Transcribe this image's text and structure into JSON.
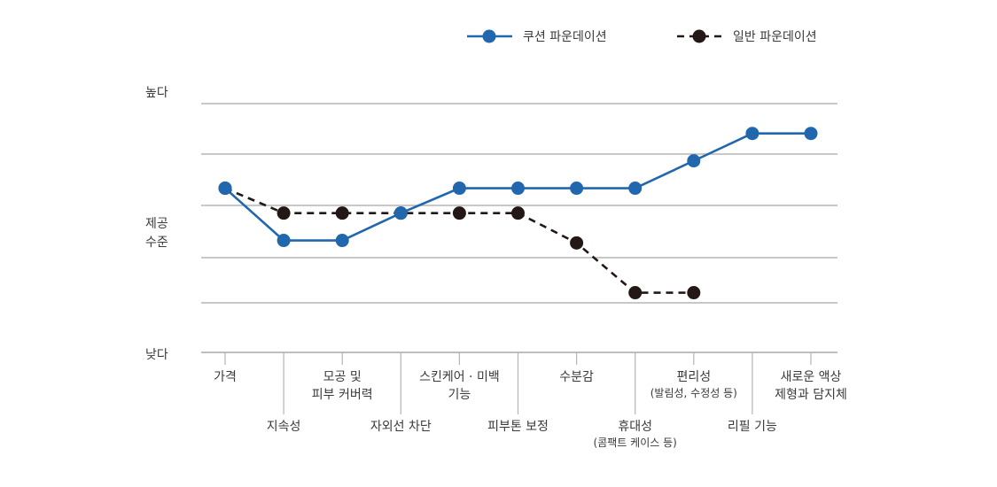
{
  "chart_data": {
    "type": "line",
    "title": "",
    "xlabel": "",
    "ylabel": "제공 수준",
    "y_axis_labels": {
      "top": "높다",
      "middle_line1": "제공",
      "middle_line2": "수준",
      "bottom": "낮다"
    },
    "ylim": [
      0,
      5
    ],
    "grid": true,
    "legend_position": "top-right",
    "categories": [
      {
        "label": [
          "가격"
        ],
        "sub": "",
        "row": "upper"
      },
      {
        "label": [
          "지속성"
        ],
        "sub": "",
        "row": "lower"
      },
      {
        "label": [
          "모공 및",
          "피부 커버력"
        ],
        "sub": "",
        "row": "upper"
      },
      {
        "label": [
          "자외선 차단"
        ],
        "sub": "",
        "row": "lower"
      },
      {
        "label": [
          "스킨케어 · 미백",
          "기능"
        ],
        "sub": "",
        "row": "upper"
      },
      {
        "label": [
          "피부톤 보정"
        ],
        "sub": "",
        "row": "lower"
      },
      {
        "label": [
          "수분감"
        ],
        "sub": "",
        "row": "upper"
      },
      {
        "label": [
          "휴대성"
        ],
        "sub": "(콤팩트 케이스 등)",
        "row": "lower"
      },
      {
        "label": [
          "편리성"
        ],
        "sub": "(발림성, 수정성 등)",
        "row": "upper"
      },
      {
        "label": [
          "리필 기능"
        ],
        "sub": "",
        "row": "lower"
      },
      {
        "label": [
          "새로운 액상",
          "제형과 담지체"
        ],
        "sub": "",
        "row": "upper"
      }
    ],
    "series": [
      {
        "name": "쿠션 파운데이션",
        "color": "#2167ad",
        "style": "solid",
        "values": [
          3.3,
          2.25,
          2.25,
          2.8,
          3.3,
          3.3,
          3.3,
          3.3,
          3.85,
          4.4,
          4.4
        ]
      },
      {
        "name": "일반 파운데이션",
        "color": "#231815",
        "style": "dashed",
        "values": [
          3.3,
          2.8,
          2.8,
          2.8,
          2.8,
          2.8,
          2.2,
          1.2,
          1.2,
          null,
          null
        ]
      }
    ]
  }
}
